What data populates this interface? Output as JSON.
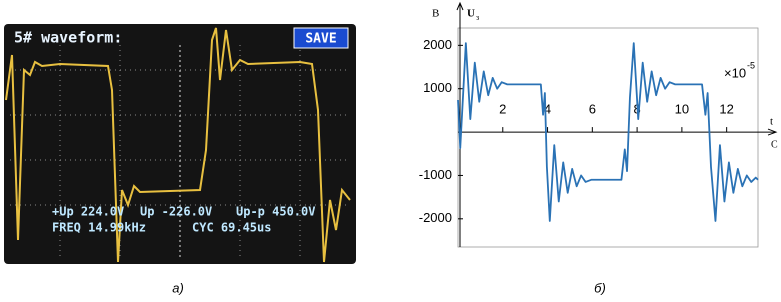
{
  "oscilloscope": {
    "title": "5# waveform:",
    "button": "SAVE",
    "readings": [
      [
        "+Up 224.0V",
        "Up -226.0V",
        "Up-p 450.0V"
      ],
      [
        "FREQ 14.99kHz",
        "CYC 69.45us"
      ]
    ]
  },
  "captions": [
    "а)",
    "б)"
  ],
  "chart_data": {
    "type": "line",
    "y_unit": "В",
    "y_name": "U",
    "y_name_sub": "з",
    "x_name": "t",
    "x_unit": "С",
    "x_multiplier": {
      "base": "×10",
      "exponent": "-5"
    },
    "color": "#2a72b5",
    "x": [
      0,
      0.1,
      0.35,
      0.55,
      0.75,
      0.95,
      1.15,
      1.35,
      1.55,
      1.75,
      1.95,
      2.2,
      3.7,
      3.8,
      3.88,
      3.97,
      4.1,
      4.3,
      4.5,
      4.7,
      4.9,
      5.1,
      5.3,
      5.5,
      5.7,
      5.95,
      7.3,
      7.45,
      7.55,
      7.68,
      7.85,
      8.05,
      8.25,
      8.45,
      8.65,
      8.85,
      9.05,
      9.25,
      9.45,
      9.7,
      10.9,
      11.05,
      11.15,
      11.3,
      11.5,
      11.7,
      11.9,
      12.1,
      12.3,
      12.5,
      12.7,
      12.9,
      13.1,
      13.3,
      13.4
    ],
    "values": [
      740,
      -370,
      2050,
      300,
      1600,
      700,
      1400,
      850,
      1250,
      1000,
      1150,
      1100,
      1100,
      400,
      900,
      -800,
      -2050,
      -300,
      -1600,
      -700,
      -1400,
      -850,
      -1250,
      -1000,
      -1150,
      -1100,
      -1100,
      -400,
      -900,
      800,
      2050,
      300,
      1600,
      700,
      1400,
      850,
      1250,
      1000,
      1150,
      1100,
      1100,
      400,
      900,
      -800,
      -2050,
      -300,
      -1600,
      -700,
      -1400,
      -850,
      -1250,
      -1000,
      -1150,
      -1050,
      -1100
    ],
    "xlim": [
      0,
      13.4
    ],
    "ylim": [
      -2650,
      2400
    ],
    "xticks": [
      2,
      4,
      6,
      8,
      10,
      12
    ],
    "yticks": [
      -2000,
      -1000,
      1000,
      2000
    ]
  }
}
